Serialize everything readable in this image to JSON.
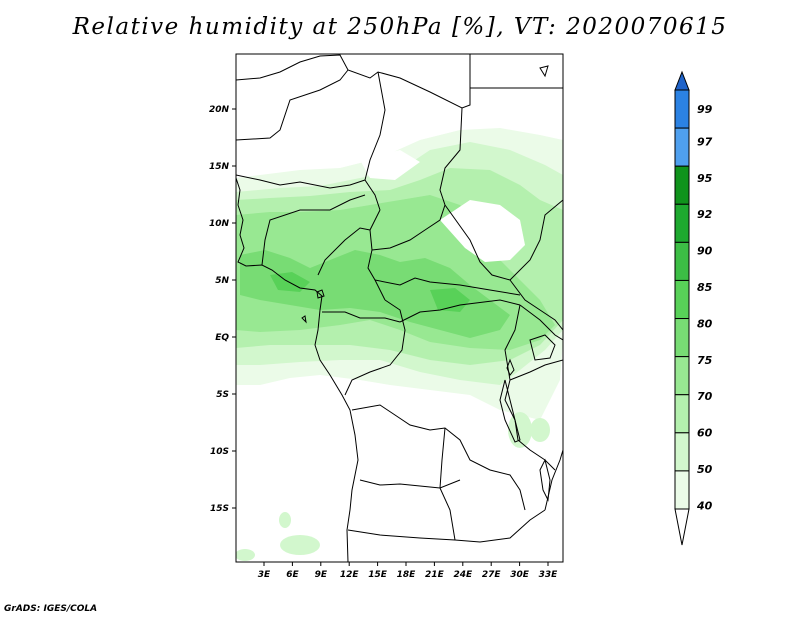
{
  "title": "Relative humidity at 250hPa [%], VT: 2020070615",
  "credit": "GrADS: IGES/COLA",
  "map": {
    "lat_ticks": [
      "20N",
      "15N",
      "10N",
      "5N",
      "EQ",
      "5S",
      "10S",
      "15S"
    ],
    "lon_ticks": [
      "3E",
      "6E",
      "9E",
      "12E",
      "15E",
      "18E",
      "21E",
      "24E",
      "27E",
      "30E",
      "33E"
    ]
  },
  "colorbar": {
    "labels": [
      "99",
      "97",
      "95",
      "92",
      "90",
      "85",
      "80",
      "75",
      "70",
      "60",
      "50",
      "40"
    ],
    "colors": [
      "#1f63c9",
      "#2b82e3",
      "#4fa0ef",
      "#10931c",
      "#1ea92f",
      "#3cbe45",
      "#58d158",
      "#78dc74",
      "#98e892",
      "#b4f0ae",
      "#d2f7cd",
      "#ebfbe8"
    ]
  },
  "chart_data": {
    "type": "heatmap",
    "title": "Relative humidity at 250hPa [%], VT: 2020070615",
    "variable": "Relative humidity",
    "level": "250hPa",
    "units": "%",
    "valid_time": "2020070615",
    "lon_range": [
      0,
      35
    ],
    "lat_range": [
      -20,
      25
    ],
    "contour_levels": [
      40,
      50,
      60,
      70,
      75,
      80,
      85,
      90,
      92,
      95,
      97,
      99
    ],
    "lat_ticks": [
      "20N",
      "15N",
      "10N",
      "5N",
      "EQ",
      "5S",
      "10S",
      "15S"
    ],
    "lon_ticks": [
      "3E",
      "6E",
      "9E",
      "12E",
      "15E",
      "18E",
      "21E",
      "24E",
      "27E",
      "30E",
      "33E"
    ],
    "colorbar_position": "right"
  }
}
